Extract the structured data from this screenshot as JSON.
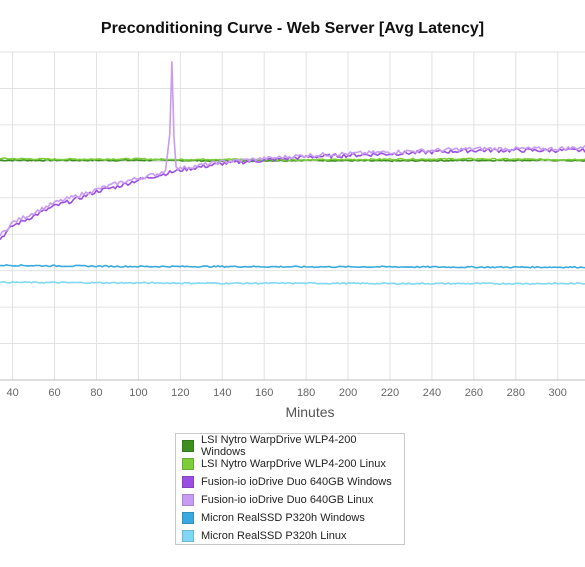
{
  "chart_data": {
    "type": "line",
    "title": "Preconditioning Curve - Web Server [Avg Latency]",
    "xlabel": "Minutes",
    "ylabel": "",
    "x_ticks": [
      "40",
      "60",
      "80",
      "100",
      "120",
      "140",
      "160",
      "180",
      "200",
      "220",
      "240",
      "260",
      "280",
      "300"
    ],
    "xlim": [
      34,
      313
    ],
    "grid": true,
    "legend_position": "bottom-center",
    "series": [
      {
        "name": "LSI Nytro WarpDrive WLP4-200 Windows",
        "color": "#3c8f1e",
        "x": [
          34,
          60,
          100,
          116,
          140,
          180,
          220,
          260,
          300,
          313
        ],
        "y": [
          0.67,
          0.67,
          0.67,
          0.67,
          0.668,
          0.67,
          0.668,
          0.67,
          0.67,
          0.668
        ]
      },
      {
        "name": "LSI Nytro WarpDrive WLP4-200 Linux",
        "color": "#7ccd3a",
        "x": [
          34,
          60,
          100,
          116,
          140,
          180,
          220,
          260,
          300,
          313
        ],
        "y": [
          0.675,
          0.673,
          0.674,
          0.672,
          0.673,
          0.671,
          0.673,
          0.674,
          0.672,
          0.673
        ]
      },
      {
        "name": "Fusion-io ioDrive Duo 640GB Windows",
        "color": "#9b4fe2",
        "x": [
          34,
          40,
          50,
          60,
          70,
          80,
          90,
          100,
          110,
          120,
          130,
          140,
          150,
          160,
          180,
          200,
          220,
          240,
          260,
          280,
          300,
          313
        ],
        "y": [
          0.43,
          0.47,
          0.5,
          0.53,
          0.55,
          0.575,
          0.59,
          0.61,
          0.625,
          0.64,
          0.65,
          0.66,
          0.665,
          0.67,
          0.68,
          0.685,
          0.69,
          0.695,
          0.7,
          0.7,
          0.7,
          0.7
        ]
      },
      {
        "name": "Fusion-io ioDrive Duo 640GB Linux",
        "color": "#c89cf2",
        "x": [
          34,
          40,
          50,
          60,
          70,
          80,
          90,
          100,
          110,
          113,
          115,
          116,
          117,
          118,
          120,
          130,
          140,
          150,
          160,
          180,
          200,
          220,
          240,
          260,
          280,
          300,
          313
        ],
        "y": [
          0.44,
          0.48,
          0.51,
          0.54,
          0.56,
          0.58,
          0.6,
          0.615,
          0.63,
          0.64,
          0.75,
          0.97,
          0.74,
          0.65,
          0.645,
          0.655,
          0.665,
          0.67,
          0.675,
          0.685,
          0.69,
          0.695,
          0.7,
          0.705,
          0.705,
          0.705,
          0.71
        ]
      },
      {
        "name": "Micron RealSSD P320h Windows",
        "color": "#3aa9e0",
        "x": [
          34,
          60,
          100,
          140,
          180,
          220,
          260,
          300,
          313
        ],
        "y": [
          0.35,
          0.348,
          0.346,
          0.346,
          0.345,
          0.345,
          0.344,
          0.344,
          0.344
        ]
      },
      {
        "name": "Micron RealSSD P320h Linux",
        "color": "#7fd8f5",
        "x": [
          34,
          60,
          100,
          140,
          180,
          220,
          260,
          300,
          313
        ],
        "y": [
          0.298,
          0.297,
          0.296,
          0.295,
          0.295,
          0.294,
          0.294,
          0.294,
          0.294
        ]
      }
    ]
  }
}
